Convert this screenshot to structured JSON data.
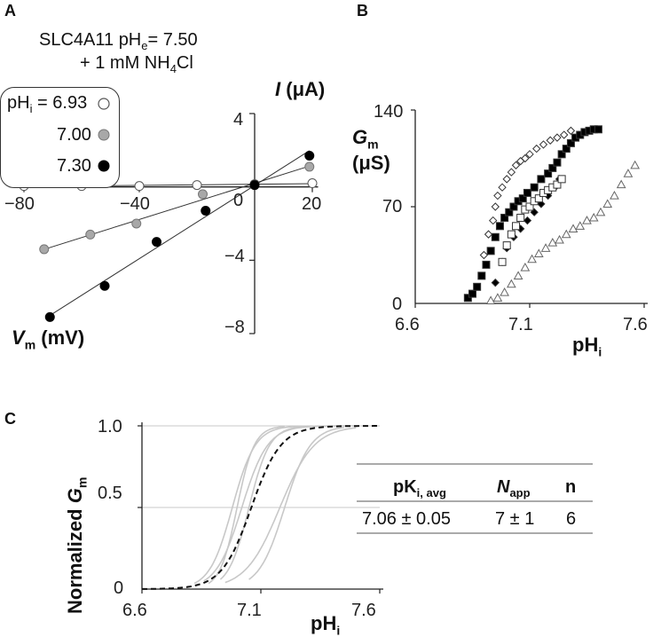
{
  "panels": {
    "a": "A",
    "b": "B",
    "c": "C"
  },
  "panel_a": {
    "condition_line1": {
      "pre": "SLC4A11 pH",
      "sub": "e",
      "post": "= 7.50"
    },
    "condition_line2": {
      "pre": "+ 1 mM NH",
      "sub": "4",
      "post": "Cl"
    },
    "legend_prefix": {
      "pre": "pH",
      "sub": "i",
      "post": " = "
    },
    "legend_values": [
      "6.93",
      "7.00",
      "7.30"
    ],
    "ylabel": {
      "sym": "I",
      "unit": " (μA)"
    },
    "xlabel": {
      "sym": "V",
      "sub": "m",
      "unit": " (mV)"
    },
    "x_ticks": [
      "−80",
      "−40",
      "20"
    ],
    "y_ticks": [
      "4",
      "0",
      "−4",
      "−8"
    ]
  },
  "panel_b": {
    "ylabel": {
      "sym": "G",
      "sub": "m",
      "unit": "(μS)"
    },
    "xlabel": {
      "pre": "pH",
      "sub": "i"
    },
    "x_ticks": [
      "6.6",
      "7.1",
      "7.6"
    ],
    "y_ticks": [
      "140",
      "70",
      "0"
    ]
  },
  "panel_c": {
    "ylabel": {
      "pre": "Normalized ",
      "sym": "G",
      "sub": "m"
    },
    "xlabel": {
      "pre": "pH",
      "sub": "i"
    },
    "x_ticks": [
      "6.6",
      "7.1",
      "7.6"
    ],
    "y_ticks": [
      "1.0",
      "0.5",
      "0"
    ],
    "table": {
      "col1": {
        "pre": "pK",
        "sub": "i, avg"
      },
      "col2": {
        "sym": "N",
        "sub": "app"
      },
      "col3": "n",
      "row": [
        "7.06 ± 0.05",
        "7 ± 1",
        "6"
      ]
    }
  },
  "colors": {
    "open": "#ffffff",
    "gray": "#a8a8a8",
    "black": "#000000",
    "light_curve": "#c8c8c8",
    "gridline": "#c8c8c8"
  },
  "chart_data": [
    {
      "type": "scatter",
      "panel": "A",
      "xlabel": "Vm (mV)",
      "ylabel": "I (μA)",
      "xlim": [
        -85,
        25
      ],
      "ylim": [
        -8,
        4
      ],
      "series": [
        {
          "name": "6.93",
          "marker": "open-circle",
          "x": [
            -80,
            -60,
            -40,
            -20,
            0,
            20
          ],
          "y": [
            0.05,
            0.05,
            0.05,
            0.1,
            0.15,
            0.2
          ]
        },
        {
          "name": "7.00",
          "marker": "gray-circle",
          "x": [
            -73,
            -57,
            -41,
            -18,
            0,
            19
          ],
          "y": [
            -3.4,
            -2.6,
            -2.0,
            -0.4,
            0.1,
            1.1
          ]
        },
        {
          "name": "7.30",
          "marker": "black-circle",
          "x": [
            -71,
            -52,
            -34,
            -17,
            0,
            19
          ],
          "y": [
            -7.1,
            -5.4,
            -3.0,
            -1.3,
            0.1,
            1.7
          ]
        }
      ]
    },
    {
      "type": "scatter",
      "panel": "B",
      "xlabel": "pHi",
      "ylabel": "Gm (μS)",
      "xlim": [
        6.6,
        7.6
      ],
      "ylim": [
        0,
        140
      ],
      "series": [
        {
          "marker": "open-diamond",
          "x": [
            6.9,
            6.92,
            6.94,
            6.95,
            6.96,
            6.98,
            7.0,
            7.02,
            7.04,
            7.06,
            7.08,
            7.1,
            7.13,
            7.16,
            7.19,
            7.22,
            7.25,
            7.28
          ],
          "y": [
            35,
            50,
            60,
            70,
            78,
            84,
            90,
            95,
            100,
            103,
            105,
            108,
            112,
            115,
            118,
            120,
            122,
            125
          ]
        },
        {
          "marker": "filled-square",
          "x": [
            6.83,
            6.85,
            6.87,
            6.89,
            6.91,
            6.93,
            6.95,
            6.97,
            6.99,
            7.01,
            7.03,
            7.05,
            7.07,
            7.09,
            7.12,
            7.15,
            7.18,
            7.2,
            7.22,
            7.24,
            7.26,
            7.28,
            7.3,
            7.32,
            7.34,
            7.36,
            7.38,
            7.4
          ],
          "y": [
            4,
            7,
            12,
            20,
            28,
            38,
            48,
            56,
            62,
            66,
            70,
            74,
            76,
            80,
            84,
            90,
            94,
            98,
            102,
            108,
            112,
            116,
            120,
            122,
            124,
            125,
            126,
            126
          ]
        },
        {
          "marker": "filled-diamond",
          "x": [
            6.95,
            6.98,
            7.0,
            7.03,
            7.06,
            7.09,
            7.12,
            7.15,
            7.18,
            7.21,
            7.23
          ],
          "y": [
            15,
            30,
            40,
            48,
            54,
            60,
            66,
            72,
            78,
            84,
            90
          ]
        },
        {
          "marker": "open-square",
          "x": [
            6.98,
            7.0,
            7.02,
            7.04,
            7.06,
            7.08,
            7.1,
            7.12,
            7.14,
            7.16,
            7.18,
            7.2,
            7.22,
            7.24
          ],
          "y": [
            30,
            42,
            50,
            56,
            62,
            68,
            70,
            74,
            76,
            80,
            82,
            84,
            86,
            90
          ]
        },
        {
          "marker": "open-triangle",
          "x": [
            6.93,
            6.96,
            6.99,
            7.02,
            7.05,
            7.08,
            7.11,
            7.14,
            7.17,
            7.2,
            7.23,
            7.26,
            7.29,
            7.32,
            7.35,
            7.38,
            7.41,
            7.44,
            7.47,
            7.5,
            7.53,
            7.56
          ],
          "y": [
            2,
            4,
            8,
            14,
            20,
            26,
            32,
            36,
            40,
            44,
            46,
            50,
            54,
            56,
            60,
            62,
            66,
            72,
            78,
            86,
            94,
            100
          ]
        }
      ]
    },
    {
      "type": "line",
      "panel": "C",
      "xlabel": "pHi",
      "ylabel": "Normalized Gm",
      "xlim": [
        6.6,
        7.6
      ],
      "ylim": [
        0,
        1
      ],
      "series": [
        {
          "style": "dashed",
          "pK": 7.06,
          "n": 7,
          "x_range": [
            6.6,
            7.6
          ]
        },
        {
          "style": "gray",
          "pK": 6.98,
          "n": 9,
          "x_range": [
            6.82,
            7.3
          ]
        },
        {
          "style": "gray",
          "pK": 7.0,
          "n": 12,
          "x_range": [
            6.88,
            7.2
          ]
        },
        {
          "style": "gray",
          "pK": 7.02,
          "n": 8,
          "x_range": [
            6.86,
            7.5
          ]
        },
        {
          "style": "gray",
          "pK": 7.05,
          "n": 10,
          "x_range": [
            6.93,
            7.35
          ]
        },
        {
          "style": "gray",
          "pK": 7.18,
          "n": 6,
          "x_range": [
            6.95,
            7.5
          ]
        },
        {
          "style": "gray",
          "pK": 7.2,
          "n": 8,
          "x_range": [
            7.05,
            7.45
          ]
        }
      ]
    }
  ]
}
